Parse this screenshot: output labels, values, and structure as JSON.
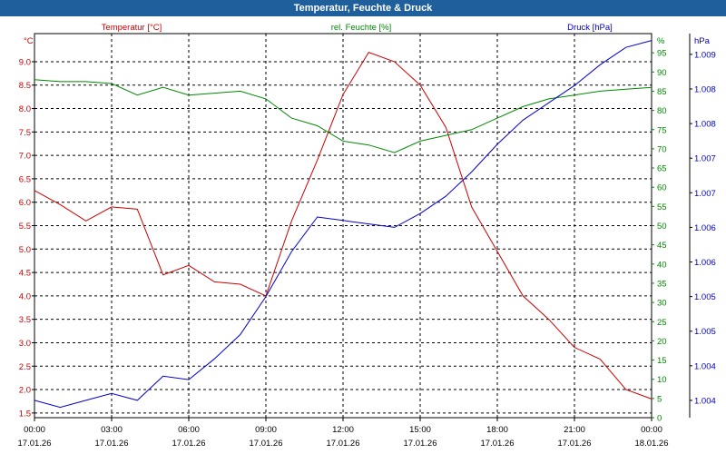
{
  "window": {
    "title": "Temperatur, Feuchte & Druck"
  },
  "chart_data": {
    "type": "line",
    "title": "Temperatur, Feuchte & Druck",
    "xlabel": "",
    "x": [
      0,
      1,
      2,
      3,
      4,
      5,
      6,
      7,
      8,
      9,
      10,
      11,
      12,
      13,
      14,
      15,
      16,
      17,
      18,
      19,
      20,
      21,
      22,
      23,
      24
    ],
    "x_ticks": [
      {
        "h": 0,
        "time": "00:00",
        "date": "17.01.26"
      },
      {
        "h": 3,
        "time": "03:00",
        "date": "17.01.26"
      },
      {
        "h": 6,
        "time": "06:00",
        "date": "17.01.26"
      },
      {
        "h": 9,
        "time": "09:00",
        "date": "17.01.26"
      },
      {
        "h": 12,
        "time": "12:00",
        "date": "17.01.26"
      },
      {
        "h": 15,
        "time": "15:00",
        "date": "17.01.26"
      },
      {
        "h": 18,
        "time": "18:00",
        "date": "17.01.26"
      },
      {
        "h": 21,
        "time": "21:00",
        "date": "17.01.26"
      },
      {
        "h": 24,
        "time": "00:00",
        "date": "18.01.26"
      }
    ],
    "axes": {
      "temperature": {
        "label": "Temperatur [°C]",
        "unit": "°C",
        "ylim": [
          1.4,
          9.6
        ],
        "ticks": [
          "1.5",
          "2.0",
          "2.5",
          "3.0",
          "3.5",
          "4.0",
          "4.5",
          "5.0",
          "5.5",
          "6.0",
          "6.5",
          "7.0",
          "7.5",
          "8.0",
          "8.5",
          "9.0"
        ]
      },
      "humidity": {
        "label": "rel. Feuchte [%]",
        "unit": "%",
        "ylim": [
          0,
          100
        ],
        "ticks": [
          "0",
          "5",
          "10",
          "15",
          "20",
          "25",
          "30",
          "35",
          "40",
          "45",
          "50",
          "55",
          "60",
          "65",
          "70",
          "75",
          "80",
          "85",
          "90",
          "95"
        ]
      },
      "pressure": {
        "label": "Druck [hPa]",
        "unit": "hPa",
        "ylim": [
          1003.75,
          1009.3
        ],
        "ticks": [
          "1.004",
          "1.004",
          "1.005",
          "1.005",
          "1.006",
          "1.006",
          "1.007",
          "1.007",
          "1.008",
          "1.008",
          "1.009"
        ]
      }
    },
    "series": [
      {
        "name": "Temperatur [°C]",
        "axis": "temperature",
        "color": "#cc0000",
        "values": [
          6.25,
          5.95,
          5.6,
          5.9,
          5.85,
          4.45,
          4.65,
          4.3,
          4.25,
          4.0,
          5.6,
          6.9,
          8.3,
          9.2,
          9.0,
          8.5,
          7.6,
          5.9,
          4.95,
          4.0,
          3.5,
          2.9,
          2.65,
          2.0,
          1.8
        ]
      },
      {
        "name": "rel. Feuchte [%]",
        "axis": "humidity",
        "color": "#008800",
        "values": [
          88,
          87.5,
          87.5,
          87,
          84,
          86,
          84,
          84.5,
          85,
          83,
          78,
          76,
          72,
          71,
          69,
          72,
          73.5,
          75,
          78,
          81,
          83,
          84,
          85,
          85.5,
          86
        ]
      },
      {
        "name": "Druck [hPa]",
        "axis": "pressure",
        "color": "#0000cc",
        "values": [
          1004.0,
          1003.9,
          1004.0,
          1004.1,
          1004.0,
          1004.35,
          1004.3,
          1004.6,
          1004.95,
          1005.5,
          1006.15,
          1006.65,
          1006.6,
          1006.55,
          1006.5,
          1006.7,
          1006.95,
          1007.3,
          1007.7,
          1008.05,
          1008.3,
          1008.55,
          1008.85,
          1009.1,
          1009.2
        ]
      }
    ],
    "grid": true
  },
  "colors": {
    "titlebar": "#1f5f9c",
    "temperature": "#cc0000",
    "humidity": "#008800",
    "pressure": "#0000cc"
  }
}
